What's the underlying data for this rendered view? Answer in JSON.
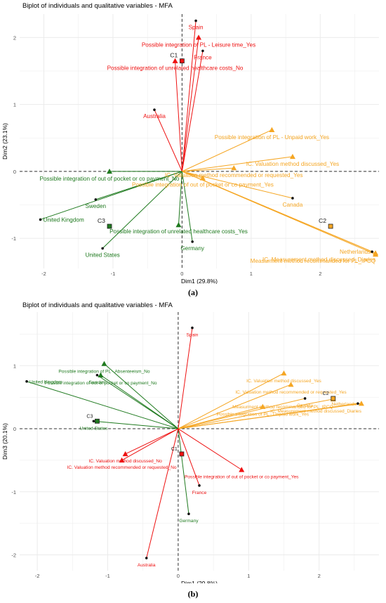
{
  "figure": {
    "captions": [
      "(a)",
      "(b)"
    ]
  },
  "colors": {
    "red": "#ee1111",
    "green": "#1f7a1f",
    "orange": "#f5a623",
    "dark": "#222222",
    "grid": "#ebebeb"
  },
  "chart_data": [
    {
      "type": "scatter",
      "subtype": "biplot",
      "title": "Biplot of individuals and qualitative variables - MFA",
      "xlabel": "Dim1 (29.8%)",
      "ylabel": "Dim2 (23.1%)",
      "xlim": [
        -2.35,
        2.85
      ],
      "ylim": [
        -1.45,
        2.35
      ],
      "xticks": [
        -2,
        -1,
        0,
        1,
        2
      ],
      "yticks": [
        -1,
        0,
        1,
        2
      ],
      "grid": true,
      "legend": "none",
      "reference_lines": {
        "x": 0,
        "y": 0,
        "style": "dashed"
      },
      "variables": [
        {
          "label": "Possible integration of PL - Leisure time_Yes",
          "x": 0.24,
          "y": 2.0,
          "group": "red",
          "shape": "triangle"
        },
        {
          "label": "Possible integration of unrelated healthcare costs_No",
          "x": -0.1,
          "y": 1.65,
          "group": "red",
          "shape": "triangle"
        },
        {
          "label": "Possible integration of PL - Unpaid work_Yes",
          "x": 1.3,
          "y": 0.62,
          "group": "orange",
          "shape": "triangle"
        },
        {
          "label": "IC. Valuation method discussed_Yes",
          "x": 1.6,
          "y": 0.22,
          "group": "orange",
          "shape": "triangle"
        },
        {
          "label": "IC. Valuation method recommended or requested_Yes",
          "x": 0.75,
          "y": 0.05,
          "group": "orange",
          "shape": "triangle"
        },
        {
          "label": "Possible integration of out of pocket or co payment_Yes",
          "x": 0.3,
          "y": -0.1,
          "group": "orange",
          "shape": "triangle"
        },
        {
          "label": "IC. Measurement method discussed_Diaries",
          "x": 2.8,
          "y": -1.22,
          "group": "orange",
          "shape": "triangle"
        },
        {
          "label": "Measurment method recommanded for PL_IPCQ",
          "x": 2.8,
          "y": -1.24,
          "group": "orange",
          "shape": "triangle"
        },
        {
          "label": "Possible integration of out of pocket or co payment_No",
          "x": -1.05,
          "y": 0.0,
          "group": "green",
          "shape": "triangle"
        },
        {
          "label": "Possible integration of unrelated healthcare costs_Yes",
          "x": -0.05,
          "y": -0.8,
          "group": "green",
          "shape": "triangle"
        }
      ],
      "individuals": [
        {
          "label": "Spain",
          "x": 0.2,
          "y": 2.25,
          "group": "red"
        },
        {
          "label": "France",
          "x": 0.3,
          "y": 1.8,
          "group": "red"
        },
        {
          "label": "Australia",
          "x": -0.4,
          "y": 0.92,
          "group": "red"
        },
        {
          "label": "Canada",
          "x": 1.6,
          "y": -0.4,
          "group": "orange"
        },
        {
          "label": "Netherlands",
          "x": 2.75,
          "y": -1.2,
          "group": "orange"
        },
        {
          "label": "Sweden",
          "x": -1.25,
          "y": -0.42,
          "group": "green"
        },
        {
          "label": "United Kingdom",
          "x": -2.05,
          "y": -0.72,
          "group": "green"
        },
        {
          "label": "United States",
          "x": -1.15,
          "y": -1.15,
          "group": "green"
        },
        {
          "label": "Germany",
          "x": 0.15,
          "y": -1.05,
          "group": "green"
        }
      ],
      "centroids": [
        {
          "label": "C1",
          "x": 0.0,
          "y": 1.65,
          "group": "red"
        },
        {
          "label": "C2",
          "x": 2.15,
          "y": -0.82,
          "group": "orange"
        },
        {
          "label": "C3",
          "x": -1.05,
          "y": -0.82,
          "group": "green"
        }
      ]
    },
    {
      "type": "scatter",
      "subtype": "biplot",
      "title": "Biplot of individuals and qualitative variables - MFA",
      "xlabel": "Dim1 (29.8%)",
      "ylabel": "Dim3 (20.1%)",
      "xlim": [
        -2.25,
        2.85
      ],
      "ylim": [
        -2.25,
        1.85
      ],
      "xticks": [
        -2,
        -1,
        0,
        1,
        2
      ],
      "yticks": [
        -2,
        -1,
        0,
        1
      ],
      "grid": true,
      "legend": "none",
      "reference_lines": {
        "x": 0,
        "y": 0,
        "style": "dashed"
      },
      "variables": [
        {
          "label": "Possible integration of PL - Absenteeism_No",
          "x": -1.05,
          "y": 1.03,
          "group": "green",
          "shape": "triangle"
        },
        {
          "label": "Possible integration of out of pocket or co payment_No",
          "x": -1.1,
          "y": 0.85,
          "group": "green",
          "shape": "triangle"
        },
        {
          "label": "IC. Valuation method discussed_Yes",
          "x": 1.5,
          "y": 0.88,
          "group": "orange",
          "shape": "triangle"
        },
        {
          "label": "IC. Valuation method recommended or requested_Yes",
          "x": 1.6,
          "y": 0.7,
          "group": "orange",
          "shape": "triangle"
        },
        {
          "label": "Measurment method recommanded for PL_IPCQ",
          "x": 2.2,
          "y": 0.47,
          "group": "orange",
          "shape": "triangle"
        },
        {
          "label": "Possible integration of PL - Unpaid work_Yes",
          "x": 1.2,
          "y": 0.35,
          "group": "orange",
          "shape": "triangle"
        },
        {
          "label": "IC. Measurement method discussed_Diaries",
          "x": 2.6,
          "y": 0.4,
          "group": "orange",
          "shape": "triangle"
        },
        {
          "label": "IC. Valuation method discussed_No",
          "x": -0.75,
          "y": -0.4,
          "group": "red",
          "shape": "triangle"
        },
        {
          "label": "IC. Valuation method recommended or requested_No",
          "x": -0.8,
          "y": -0.5,
          "group": "red",
          "shape": "triangle"
        },
        {
          "label": "Possible integration of out of pocket or co payment_Yes",
          "x": 0.9,
          "y": -0.65,
          "group": "red",
          "shape": "triangle"
        }
      ],
      "individuals": [
        {
          "label": "Spain",
          "x": 0.2,
          "y": 1.6,
          "group": "red"
        },
        {
          "label": "Sweden",
          "x": -1.15,
          "y": 0.85,
          "group": "green"
        },
        {
          "label": "United Kingdom",
          "x": -2.15,
          "y": 0.75,
          "group": "green"
        },
        {
          "label": "United States",
          "x": -1.2,
          "y": 0.12,
          "group": "green"
        },
        {
          "label": "Germany",
          "x": 0.15,
          "y": -1.35,
          "group": "green"
        },
        {
          "label": "France",
          "x": 0.3,
          "y": -0.9,
          "group": "red"
        },
        {
          "label": "Australia",
          "x": -0.45,
          "y": -2.05,
          "group": "red"
        },
        {
          "label": "Canada",
          "x": 1.8,
          "y": 0.48,
          "group": "orange"
        },
        {
          "label": "Netherlands",
          "x": 2.55,
          "y": 0.4,
          "group": "orange"
        }
      ],
      "centroids": [
        {
          "label": "C1",
          "x": 0.05,
          "y": -0.4,
          "group": "red"
        },
        {
          "label": "C2",
          "x": 2.2,
          "y": 0.48,
          "group": "orange"
        },
        {
          "label": "C3",
          "x": -1.15,
          "y": 0.12,
          "group": "green"
        }
      ]
    }
  ]
}
